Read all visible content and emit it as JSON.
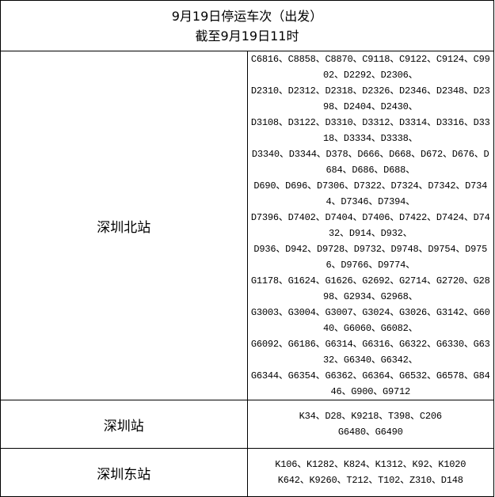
{
  "title": "9月19日停运车次（出发）",
  "subtitle": "截至9月19日11时",
  "stations": [
    {
      "name": "深圳北站",
      "lines": [
        "C6816、C8858、C8870、C9118、C9122、C9124、C9902、D2292、D2306、",
        "D2310、D2312、D2318、D2326、D2346、D2348、D2398、D2404、D2430、",
        "D3108、D3122、D3310、D3312、D3314、D3316、D3318、D3334、D3338、",
        "D3340、D3344、D378、D666、D668、D672、D676、D684、D686、D688、",
        "D690、D696、D7306、D7322、D7324、D7342、D7344、D7346、D7394、",
        "D7396、D7402、D7404、D7406、D7422、D7424、D7432、D914、D932、",
        "D936、D942、D9728、D9732、D9748、D9754、D9756、D9766、D9774、",
        "G1178、G1624、G1626、G2692、G2714、G2720、G2898、G2934、G2968、",
        "G3003、G3004、G3007、G3024、G3026、G3142、G6040、G6060、G6082、",
        "G6092、G6186、G6314、G6316、G6322、G6330、G6332、G6340、G6342、",
        "G6344、G6354、G6362、G6364、G6532、G6578、G8446、G900、G9712"
      ]
    },
    {
      "name": "深圳站",
      "lines": [
        "K34、D28、K9218、T398、C206",
        "G6480、G6490"
      ]
    },
    {
      "name": "深圳东站",
      "lines": [
        "K106、K1282、K824、K1312、K92、K1020",
        "K642、K9260、T212、T102、Z310、D148"
      ]
    }
  ]
}
